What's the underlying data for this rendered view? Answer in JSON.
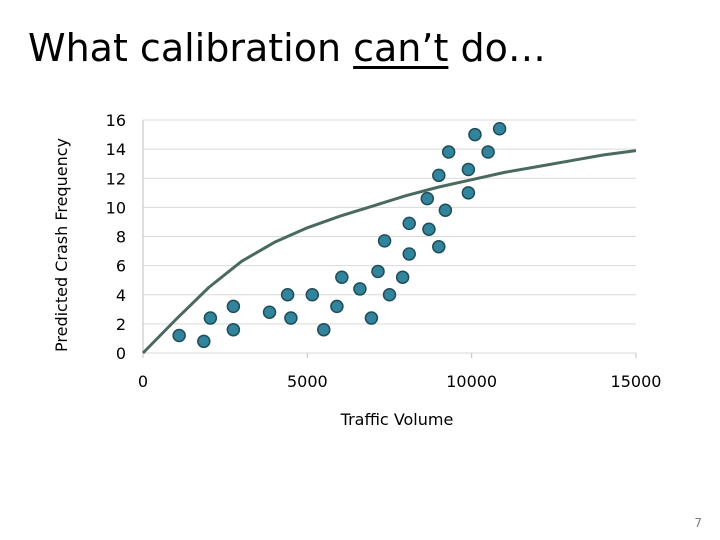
{
  "slide": {
    "title_pre": "What calibration ",
    "title_underlined": "can’t",
    "title_post": " do…",
    "page_number": "7"
  },
  "chart_data": {
    "type": "scatter",
    "title": "",
    "xlabel": "Traffic Volume",
    "ylabel": "Predicted Crash Frequency",
    "xlim": [
      0,
      15000
    ],
    "ylim": [
      0,
      16
    ],
    "x_ticks": [
      0,
      5000,
      10000,
      15000
    ],
    "y_ticks": [
      0,
      2,
      4,
      6,
      8,
      10,
      12,
      14,
      16
    ],
    "grid": "horizontal",
    "legend": "none",
    "colors": {
      "points": "#31849b",
      "point_edge": "#1f4e5a",
      "curve": "#4a6a60",
      "grid": "#d9d9d9",
      "axis": "#bfbfbf"
    },
    "series": [
      {
        "type": "scatter",
        "points": [
          [
            1100,
            1.2
          ],
          [
            1850,
            0.8
          ],
          [
            2050,
            2.4
          ],
          [
            2750,
            3.2
          ],
          [
            2750,
            1.6
          ],
          [
            3850,
            2.8
          ],
          [
            4400,
            4.0
          ],
          [
            4500,
            2.4
          ],
          [
            5150,
            4.0
          ],
          [
            5500,
            1.6
          ],
          [
            5900,
            3.2
          ],
          [
            6050,
            5.2
          ],
          [
            6600,
            4.4
          ],
          [
            6950,
            2.4
          ],
          [
            7150,
            5.6
          ],
          [
            7350,
            7.7
          ],
          [
            7500,
            4.0
          ],
          [
            7900,
            5.2
          ],
          [
            8100,
            6.8
          ],
          [
            8100,
            8.9
          ],
          [
            8650,
            10.6
          ],
          [
            8700,
            8.5
          ],
          [
            9000,
            7.3
          ],
          [
            9000,
            12.2
          ],
          [
            9200,
            9.8
          ],
          [
            9300,
            13.8
          ],
          [
            9900,
            12.6
          ],
          [
            9900,
            11.0
          ],
          [
            10100,
            15.0
          ],
          [
            10500,
            13.8
          ],
          [
            10850,
            15.4
          ]
        ]
      },
      {
        "type": "line",
        "points": [
          [
            0,
            0
          ],
          [
            1000,
            2.3
          ],
          [
            2000,
            4.5
          ],
          [
            3000,
            6.3
          ],
          [
            4000,
            7.6
          ],
          [
            5000,
            8.6
          ],
          [
            6000,
            9.4
          ],
          [
            7000,
            10.1
          ],
          [
            8000,
            10.8
          ],
          [
            9000,
            11.4
          ],
          [
            10000,
            11.9
          ],
          [
            11000,
            12.4
          ],
          [
            12000,
            12.8
          ],
          [
            13000,
            13.2
          ],
          [
            14000,
            13.6
          ],
          [
            15000,
            13.9
          ]
        ]
      }
    ]
  }
}
